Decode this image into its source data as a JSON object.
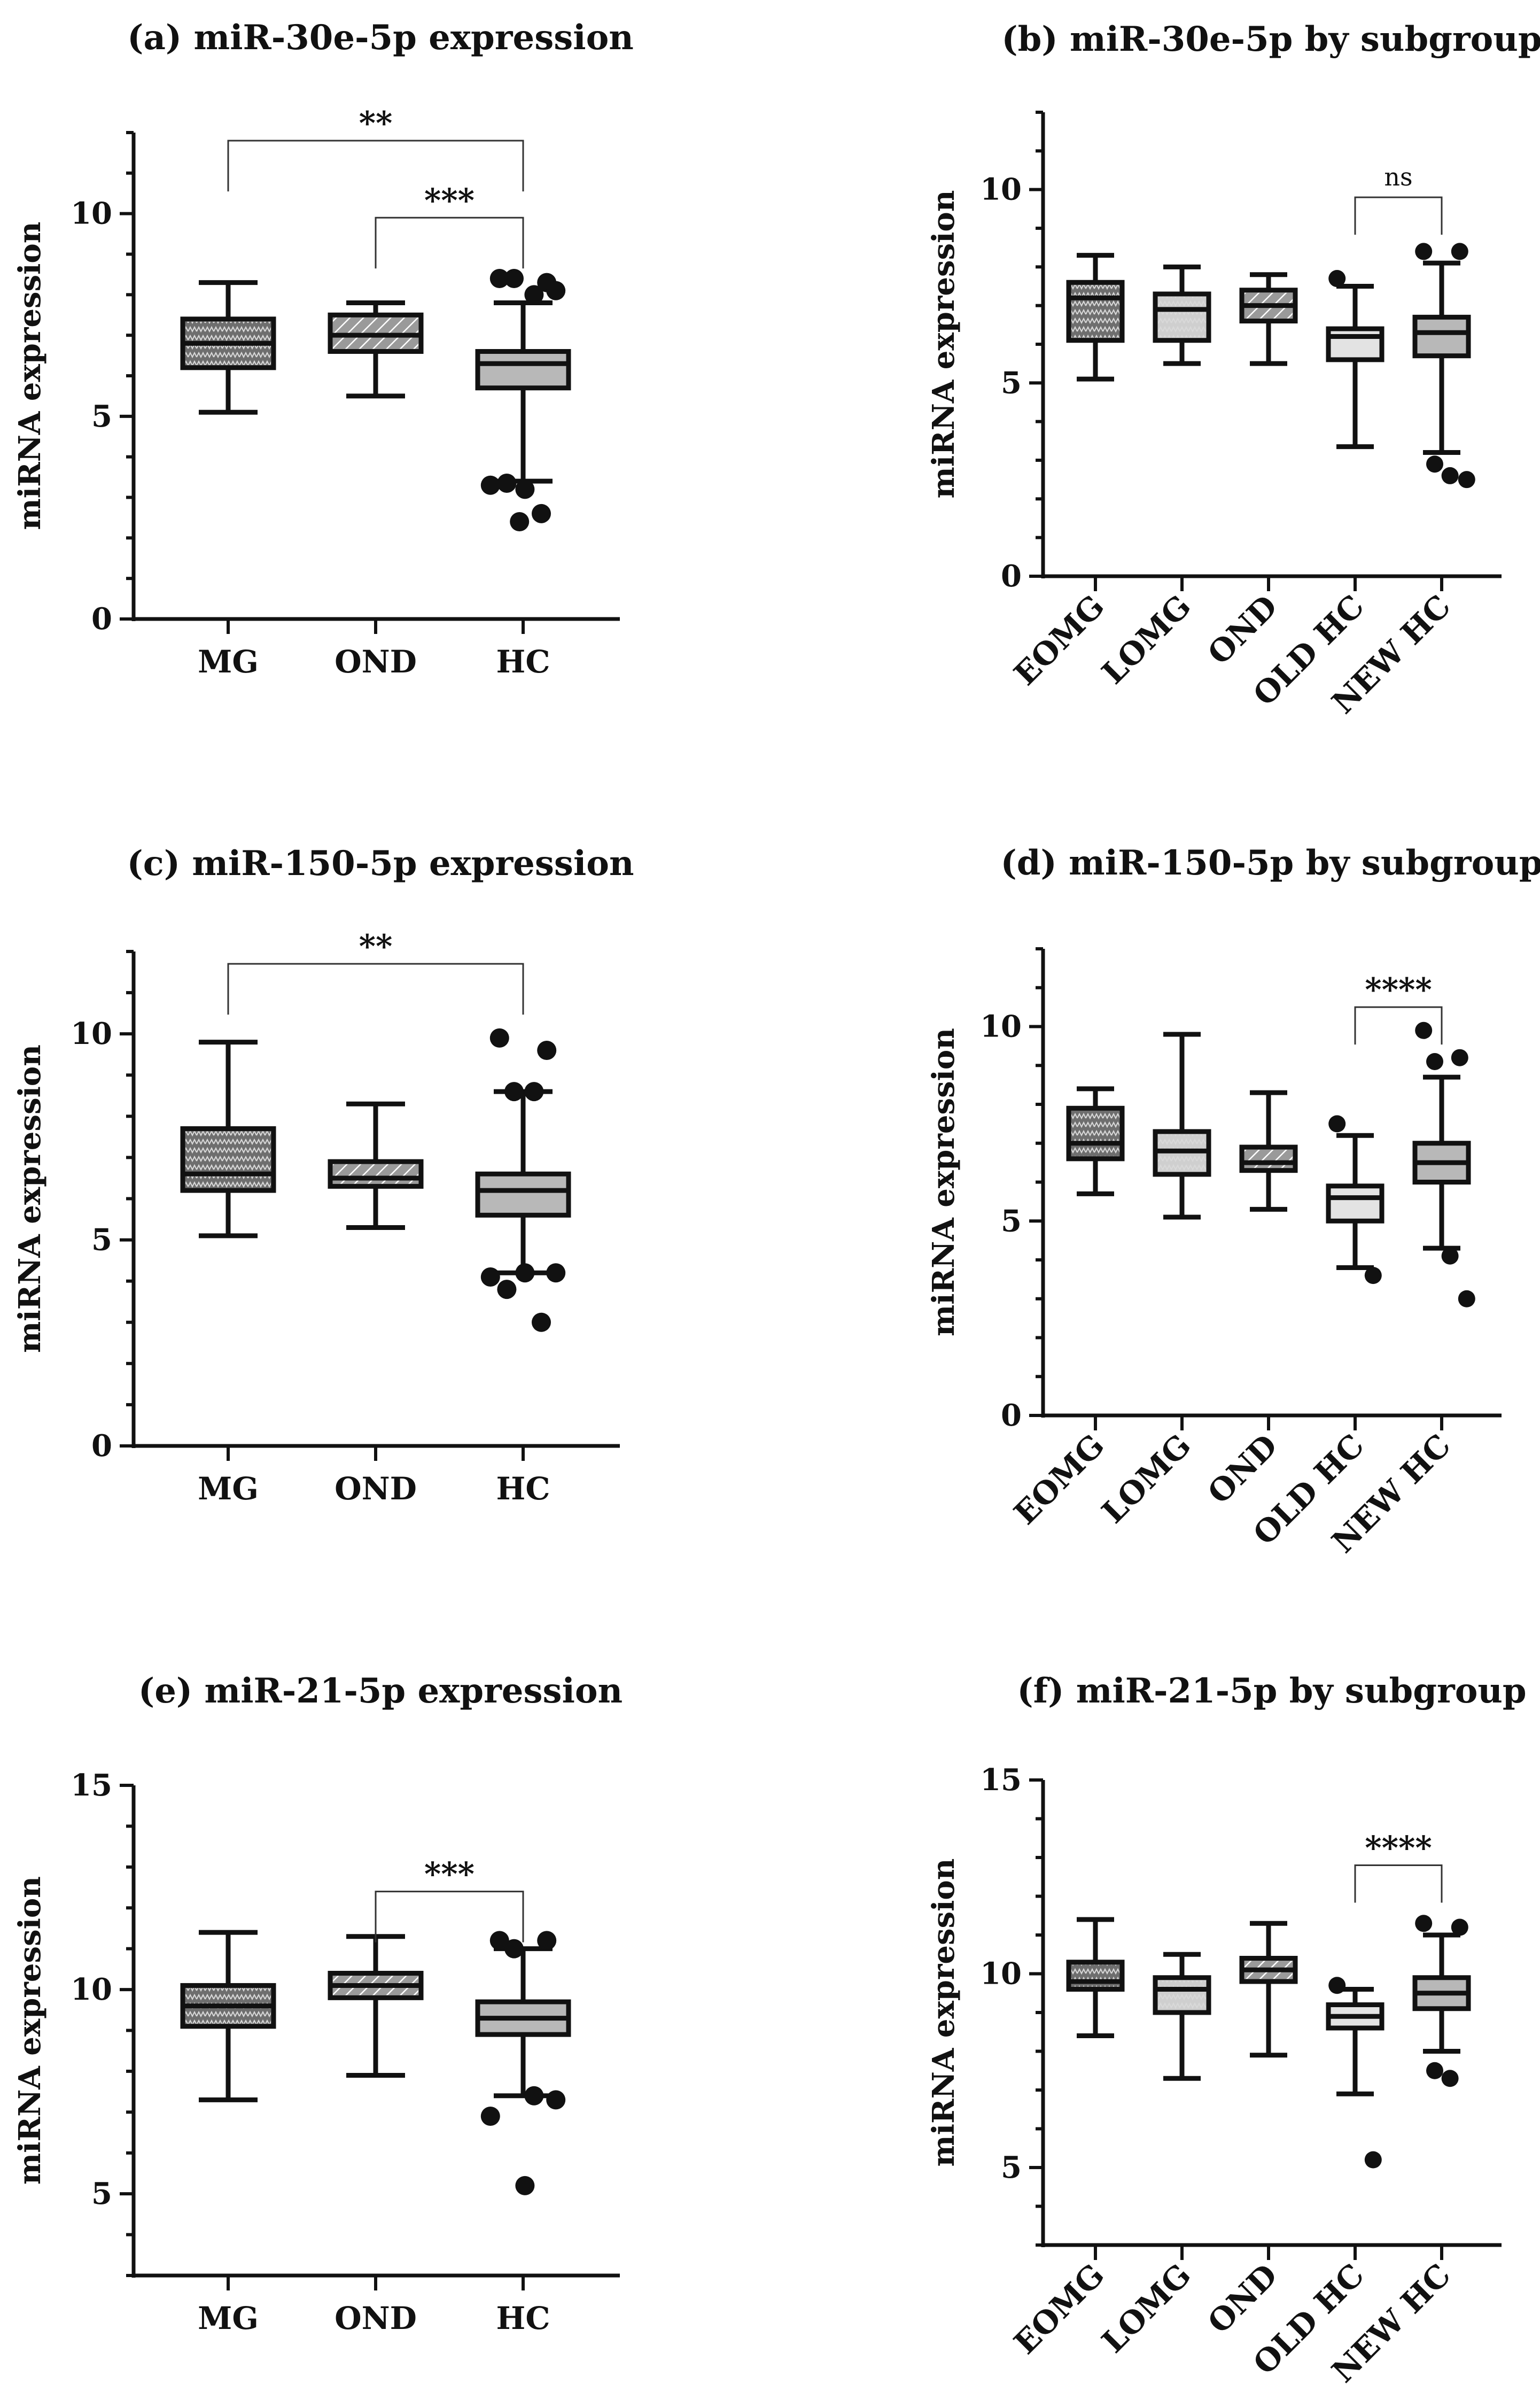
{
  "chart_data": [
    {
      "id": "a",
      "type": "box",
      "title": "(a) miR-30e-5p expression",
      "ylabel": "miRNA expression",
      "xlabel": "",
      "ylim": [
        0,
        12
      ],
      "yticks": [
        0,
        5,
        10
      ],
      "categories": [
        "MG",
        "OND",
        "HC"
      ],
      "boxes": [
        {
          "name": "MG",
          "min": 5.1,
          "q1": 6.2,
          "median": 6.8,
          "q3": 7.4,
          "max": 8.3,
          "fill": "#6e6e6e",
          "pattern": "dots",
          "outliers": []
        },
        {
          "name": "OND",
          "min": 5.5,
          "q1": 6.6,
          "median": 7.0,
          "q3": 7.5,
          "max": 7.8,
          "fill": "#9a9a9a",
          "pattern": "hatch",
          "outliers": []
        },
        {
          "name": "HC",
          "min": 3.4,
          "q1": 5.7,
          "median": 6.3,
          "q3": 6.6,
          "max": 7.8,
          "fill": "#b8b8b8",
          "pattern": "none",
          "outliers": [
            8.4,
            8.3,
            8.4,
            8.0,
            8.1,
            3.3,
            3.2,
            3.35,
            2.6,
            2.4
          ]
        }
      ],
      "brackets": [
        {
          "from": "MG",
          "to": "HC",
          "y": 11.8,
          "label": "**"
        },
        {
          "from": "OND",
          "to": "HC",
          "y": 9.9,
          "label": "***"
        }
      ]
    },
    {
      "id": "b",
      "type": "box",
      "title": "(b) miR-30e-5p by subgroup",
      "ylabel": "miRNA expression",
      "xlabel": "",
      "ylim": [
        0,
        12
      ],
      "yticks": [
        0,
        5,
        10
      ],
      "categories": [
        "EOMG",
        "LOMG",
        "OND",
        "OLD HC",
        "NEW HC"
      ],
      "boxes": [
        {
          "name": "EOMG",
          "min": 5.1,
          "q1": 6.1,
          "median": 7.2,
          "q3": 7.6,
          "max": 8.3,
          "fill": "#6e6e6e",
          "pattern": "dots",
          "outliers": []
        },
        {
          "name": "LOMG",
          "min": 5.5,
          "q1": 6.1,
          "median": 6.9,
          "q3": 7.3,
          "max": 8.0,
          "fill": "#cfcfcf",
          "pattern": "dots",
          "outliers": []
        },
        {
          "name": "OND",
          "min": 5.5,
          "q1": 6.6,
          "median": 7.0,
          "q3": 7.4,
          "max": 7.8,
          "fill": "#9a9a9a",
          "pattern": "hatch",
          "outliers": []
        },
        {
          "name": "OLD HC",
          "min": 3.35,
          "q1": 5.6,
          "median": 6.2,
          "q3": 6.4,
          "max": 7.5,
          "fill": "#e3e3e3",
          "pattern": "none",
          "outliers": [
            7.7
          ]
        },
        {
          "name": "NEW HC",
          "min": 3.2,
          "q1": 5.7,
          "median": 6.3,
          "q3": 6.7,
          "max": 8.1,
          "fill": "#b8b8b8",
          "pattern": "none",
          "outliers": [
            8.4,
            8.4,
            2.9,
            2.6,
            2.5
          ]
        }
      ],
      "brackets": [
        {
          "from": "OLD HC",
          "to": "NEW HC",
          "y": 9.8,
          "label": "ns"
        }
      ]
    },
    {
      "id": "c",
      "type": "box",
      "title": "(c) miR-150-5p expression",
      "ylabel": "miRNA expression",
      "xlabel": "",
      "ylim": [
        0,
        12
      ],
      "yticks": [
        0,
        5,
        10
      ],
      "categories": [
        "MG",
        "OND",
        "HC"
      ],
      "boxes": [
        {
          "name": "MG",
          "min": 5.1,
          "q1": 6.2,
          "median": 6.6,
          "q3": 7.7,
          "max": 9.8,
          "fill": "#6e6e6e",
          "pattern": "dots",
          "outliers": []
        },
        {
          "name": "OND",
          "min": 5.3,
          "q1": 6.3,
          "median": 6.5,
          "q3": 6.9,
          "max": 8.3,
          "fill": "#9a9a9a",
          "pattern": "hatch",
          "outliers": []
        },
        {
          "name": "HC",
          "min": 4.2,
          "q1": 5.6,
          "median": 6.2,
          "q3": 6.6,
          "max": 8.6,
          "fill": "#b8b8b8",
          "pattern": "none",
          "outliers": [
            9.9,
            9.6,
            8.6,
            8.6,
            4.2,
            4.1,
            4.2,
            3.8,
            3.0
          ]
        }
      ],
      "brackets": [
        {
          "from": "MG",
          "to": "HC",
          "y": 11.7,
          "label": "**"
        }
      ]
    },
    {
      "id": "d",
      "type": "box",
      "title": "(d) miR-150-5p by subgroup",
      "ylabel": "miRNA expression",
      "xlabel": "",
      "ylim": [
        0,
        12
      ],
      "yticks": [
        0,
        5,
        10
      ],
      "categories": [
        "EOMG",
        "LOMG",
        "OND",
        "OLD HC",
        "NEW HC"
      ],
      "boxes": [
        {
          "name": "EOMG",
          "min": 5.7,
          "q1": 6.6,
          "median": 7.0,
          "q3": 7.9,
          "max": 8.4,
          "fill": "#6e6e6e",
          "pattern": "dots",
          "outliers": []
        },
        {
          "name": "LOMG",
          "min": 5.1,
          "q1": 6.2,
          "median": 6.8,
          "q3": 7.3,
          "max": 9.8,
          "fill": "#cfcfcf",
          "pattern": "dots",
          "outliers": []
        },
        {
          "name": "OND",
          "min": 5.3,
          "q1": 6.3,
          "median": 6.5,
          "q3": 6.9,
          "max": 8.3,
          "fill": "#9a9a9a",
          "pattern": "hatch",
          "outliers": []
        },
        {
          "name": "OLD HC",
          "min": 3.8,
          "q1": 5.0,
          "median": 5.6,
          "q3": 5.9,
          "max": 7.2,
          "fill": "#e3e3e3",
          "pattern": "none",
          "outliers": [
            7.5,
            3.6
          ]
        },
        {
          "name": "NEW HC",
          "min": 4.3,
          "q1": 6.0,
          "median": 6.5,
          "q3": 7.0,
          "max": 8.7,
          "fill": "#b8b8b8",
          "pattern": "none",
          "outliers": [
            9.9,
            9.2,
            9.1,
            4.1,
            3.0
          ]
        }
      ],
      "brackets": [
        {
          "from": "OLD HC",
          "to": "NEW HC",
          "y": 10.5,
          "label": "****"
        }
      ]
    },
    {
      "id": "e",
      "type": "box",
      "title": "(e) miR-21-5p expression",
      "ylabel": "miRNA expression",
      "xlabel": "",
      "ylim": [
        3,
        15
      ],
      "yticks": [
        5,
        10,
        15
      ],
      "categories": [
        "MG",
        "OND",
        "HC"
      ],
      "boxes": [
        {
          "name": "MG",
          "min": 7.3,
          "q1": 9.1,
          "median": 9.6,
          "q3": 10.1,
          "max": 11.4,
          "fill": "#6e6e6e",
          "pattern": "dots",
          "outliers": []
        },
        {
          "name": "OND",
          "min": 7.9,
          "q1": 9.8,
          "median": 10.1,
          "q3": 10.4,
          "max": 11.3,
          "fill": "#9a9a9a",
          "pattern": "hatch",
          "outliers": []
        },
        {
          "name": "HC",
          "min": 7.4,
          "q1": 8.9,
          "median": 9.3,
          "q3": 9.7,
          "max": 11.0,
          "fill": "#b8b8b8",
          "pattern": "none",
          "outliers": [
            11.2,
            11.2,
            11.0,
            7.4,
            7.3,
            6.9,
            5.2
          ]
        }
      ],
      "brackets": [
        {
          "from": "OND",
          "to": "HC",
          "y": 12.4,
          "label": "***"
        }
      ]
    },
    {
      "id": "f",
      "type": "box",
      "title": "(f) miR-21-5p by subgroup",
      "ylabel": "miRNA expression",
      "xlabel": "",
      "ylim": [
        3,
        15
      ],
      "yticks": [
        5,
        10,
        15
      ],
      "categories": [
        "EOMG",
        "LOMG",
        "OND",
        "OLD HC",
        "NEW HC"
      ],
      "boxes": [
        {
          "name": "EOMG",
          "min": 8.4,
          "q1": 9.6,
          "median": 9.8,
          "q3": 10.3,
          "max": 11.4,
          "fill": "#6e6e6e",
          "pattern": "dots",
          "outliers": []
        },
        {
          "name": "LOMG",
          "min": 7.3,
          "q1": 9.0,
          "median": 9.6,
          "q3": 9.9,
          "max": 10.5,
          "fill": "#cfcfcf",
          "pattern": "dots",
          "outliers": []
        },
        {
          "name": "OND",
          "min": 7.9,
          "q1": 9.8,
          "median": 10.1,
          "q3": 10.4,
          "max": 11.3,
          "fill": "#9a9a9a",
          "pattern": "hatch",
          "outliers": []
        },
        {
          "name": "OLD HC",
          "min": 6.9,
          "q1": 8.6,
          "median": 8.9,
          "q3": 9.2,
          "max": 9.6,
          "fill": "#e3e3e3",
          "pattern": "none",
          "outliers": [
            9.7,
            5.2
          ]
        },
        {
          "name": "NEW HC",
          "min": 8.0,
          "q1": 9.1,
          "median": 9.5,
          "q3": 9.9,
          "max": 11.0,
          "fill": "#b8b8b8",
          "pattern": "none",
          "outliers": [
            11.3,
            11.2,
            7.5,
            7.3
          ]
        }
      ],
      "brackets": [
        {
          "from": "OLD HC",
          "to": "NEW HC",
          "y": 12.8,
          "label": "****"
        }
      ]
    }
  ]
}
